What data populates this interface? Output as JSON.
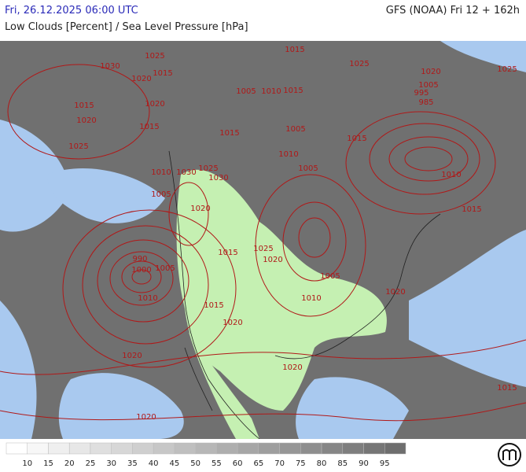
{
  "header": {
    "datetime": "Fri, 26.12.2025 06:00 UTC",
    "model": "GFS (NOAA) Fri 12 + 162h",
    "subtitle": "Low Clouds [Percent] / Sea Level Pressure [hPa]"
  },
  "isobar_labels": [
    1030,
    1025,
    1020,
    1015,
    1015,
    1020,
    1020,
    1015,
    1025,
    1010,
    1030,
    1025,
    1030,
    1005,
    1020,
    990,
    1000,
    1005,
    1010,
    1015,
    1020,
    1020,
    1020,
    1025,
    1020,
    1015,
    1005,
    1010,
    1020,
    1020,
    1005,
    1010,
    1005,
    1015,
    1005,
    1010,
    1015,
    1015,
    1025,
    1020,
    1025,
    1005,
    995,
    985,
    1015,
    1010,
    1015,
    1015
  ],
  "legend": {
    "ticks": [
      10,
      15,
      20,
      25,
      30,
      35,
      40,
      45,
      50,
      55,
      60,
      65,
      70,
      75,
      80,
      85,
      90,
      95
    ]
  }
}
